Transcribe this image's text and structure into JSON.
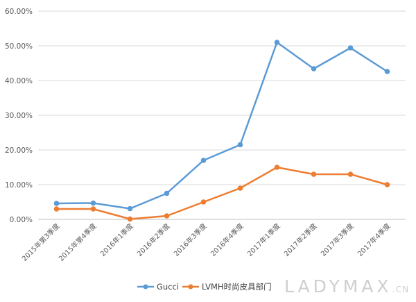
{
  "chart_data": {
    "type": "line",
    "categories": [
      "2015年第3季度",
      "2015年第4季度",
      "2016年1季度",
      "2016年2季度",
      "2016年3季度",
      "2016年4季度",
      "2017年1季度",
      "2017年2季度",
      "2017年3季度",
      "2017年4季度"
    ],
    "series": [
      {
        "name": "Gucci",
        "color": "#5b9bd5",
        "values": [
          4.6,
          4.7,
          3.1,
          7.5,
          17.0,
          21.5,
          51.0,
          43.4,
          49.4,
          42.6
        ]
      },
      {
        "name": "LVMH时尚皮具部门",
        "color": "#ed7d31",
        "values": [
          3.0,
          3.0,
          0.1,
          1.0,
          5.0,
          9.0,
          15.0,
          13.0,
          13.0,
          10.0
        ]
      }
    ],
    "y_ticks": [
      "0.00%",
      "10.00%",
      "20.00%",
      "30.00%",
      "40.00%",
      "50.00%",
      "60.00%"
    ],
    "ylim": [
      0,
      60
    ],
    "grid": true,
    "legend_position": "bottom"
  },
  "watermark": {
    "brand": "LADYMAX",
    "suffix": ".CN"
  }
}
